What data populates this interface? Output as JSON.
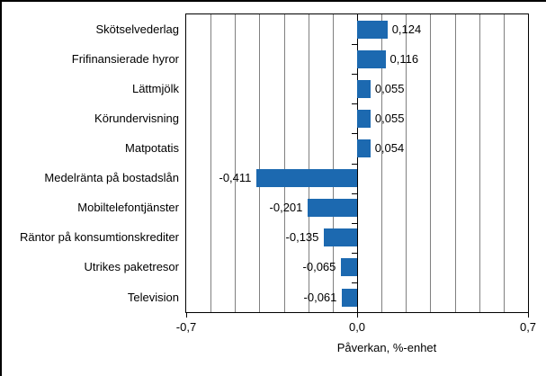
{
  "figure": {
    "background": "#ffffff",
    "border_color": "#000000"
  },
  "chart_data": {
    "type": "bar",
    "orientation": "horizontal",
    "title": "",
    "xlabel": "Påverkan, %-enhet",
    "ylabel": "",
    "categories": [
      "Skötselvederlag",
      "Frifinansierade hyror",
      "Lättmjölk",
      "Körundervisning",
      "Matpotatis",
      "Medelränta på bostadslån",
      "Mobiltelefontjänster",
      "Räntor på konsumtionskrediter",
      "Utrikes paketresor",
      "Television"
    ],
    "values": [
      0.124,
      0.116,
      0.055,
      0.055,
      0.054,
      -0.411,
      -0.201,
      -0.135,
      -0.065,
      -0.061
    ],
    "value_labels": [
      "0,124",
      "0,116",
      "0,055",
      "0,055",
      "0,054",
      "-0,411",
      "-0,201",
      "-0,135",
      "-0,065",
      "-0,061"
    ],
    "xlim": [
      -0.7,
      0.7
    ],
    "grid": true,
    "grid_interval": 0.1,
    "x_ticks": [
      {
        "value": -0.7,
        "label": "-0,7"
      },
      {
        "value": 0.0,
        "label": "0,0"
      },
      {
        "value": 0.7,
        "label": "0,7"
      }
    ],
    "legend": "none",
    "bar_color": "#1c69b0",
    "gridline_color": "#808080",
    "axis_color": "#000000",
    "text_color": "#000000"
  }
}
